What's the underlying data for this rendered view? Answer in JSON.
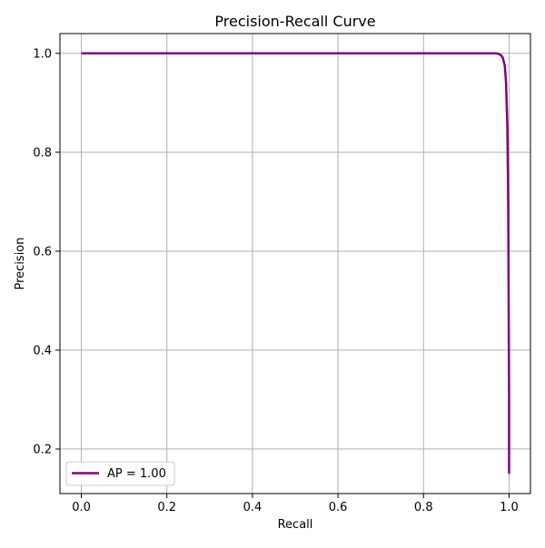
{
  "chart_data": {
    "type": "line",
    "title": "Precision-Recall Curve",
    "xlabel": "Recall",
    "ylabel": "Precision",
    "xlim": [
      -0.05,
      1.05
    ],
    "ylim": [
      0.11,
      1.04
    ],
    "grid": true,
    "legend_position": "lower-left",
    "x_ticks": [
      0.0,
      0.2,
      0.4,
      0.6,
      0.8,
      1.0
    ],
    "x_tick_labels": [
      "0.0",
      "0.2",
      "0.4",
      "0.6",
      "0.8",
      "1.0"
    ],
    "y_ticks": [
      0.2,
      0.4,
      0.6,
      0.8,
      1.0
    ],
    "y_tick_labels": [
      "0.2",
      "0.4",
      "0.6",
      "0.8",
      "1.0"
    ],
    "series": [
      {
        "name": "AP = 1.00",
        "color": "#800080",
        "x": [
          0.0,
          0.2,
          0.4,
          0.6,
          0.8,
          0.96,
          0.97,
          0.975,
          0.98,
          0.985,
          0.99,
          0.993,
          0.996,
          0.998,
          0.999,
          1.0,
          1.0
        ],
        "y": [
          1.0,
          1.0,
          1.0,
          1.0,
          1.0,
          1.0,
          1.0,
          0.999,
          0.997,
          0.992,
          0.975,
          0.94,
          0.85,
          0.7,
          0.5,
          0.3,
          0.15
        ]
      }
    ]
  }
}
